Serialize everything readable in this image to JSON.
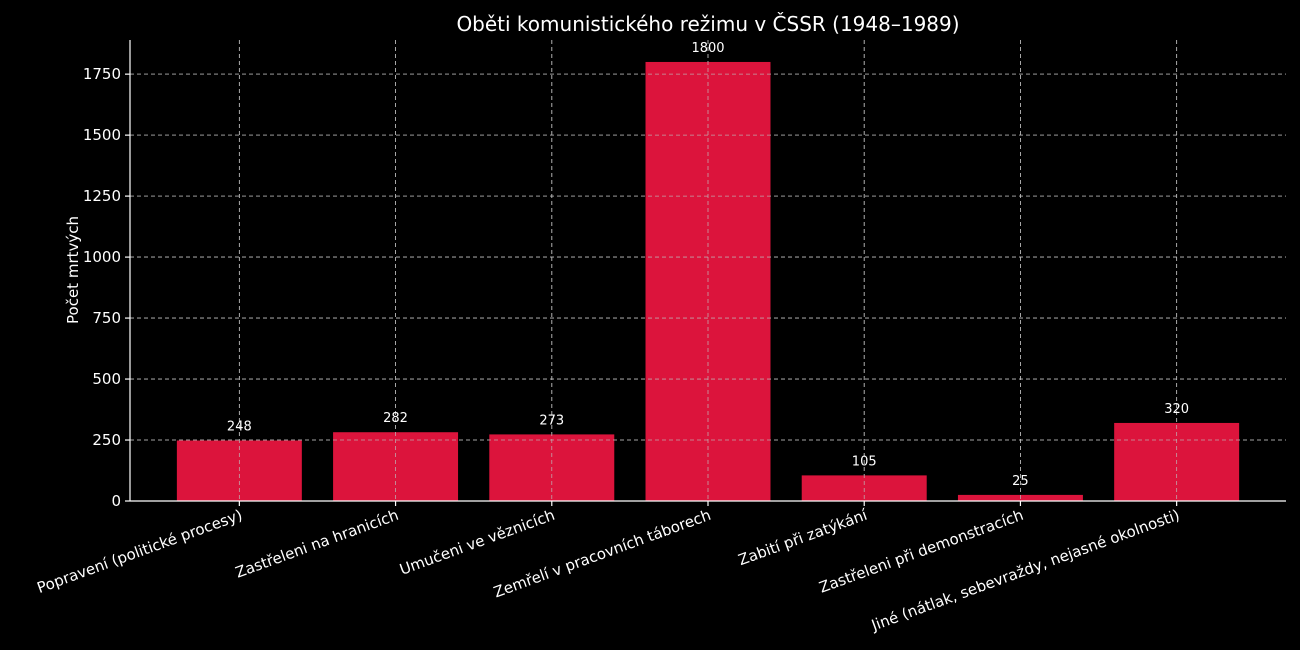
{
  "chart_data": {
    "type": "bar",
    "title": "Oběti komunistického režimu v ČSSR (1948–1989)",
    "xlabel": "",
    "ylabel": "Počet mrtvých",
    "categories": [
      "Popravení (politické procesy)",
      "Zastřeleni na hranicích",
      "Umučeni ve věznicích",
      "Zemřelí v pracovních táborech",
      "Zabití při zatýkání",
      "Zastřeleni při demonstracích",
      "Jiné (nátlak, sebevraždy, nejasné okolnosti)"
    ],
    "values": [
      248,
      282,
      273,
      1800,
      105,
      25,
      320
    ],
    "value_labels": [
      "248",
      "282",
      "273",
      "1800",
      "105",
      "25",
      "320"
    ],
    "ylim": [
      0,
      1890
    ],
    "yticks": [
      0,
      250,
      500,
      750,
      1000,
      1250,
      1500,
      1750
    ],
    "ytick_labels": [
      "0",
      "250",
      "500",
      "750",
      "1000",
      "1250",
      "1500",
      "1750"
    ],
    "grid": true,
    "grid_style": "dashed",
    "colors": {
      "background": "#000000",
      "bar": "#dc143c",
      "text": "#ffffff",
      "grid": "#bdbdbd"
    }
  }
}
